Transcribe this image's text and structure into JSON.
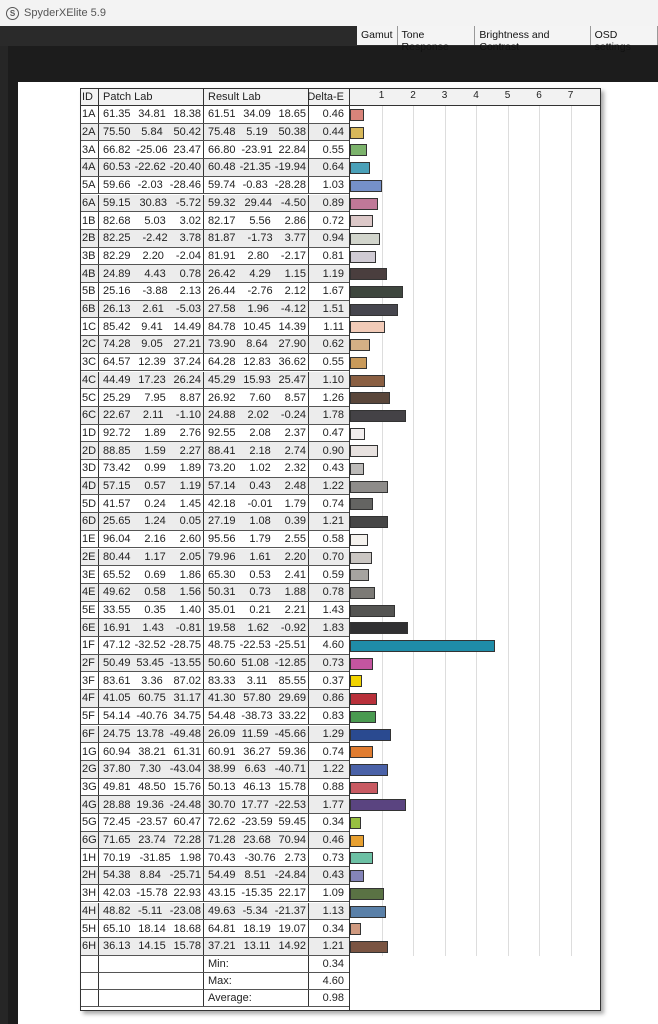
{
  "window": {
    "title": "SpyderXElite 5.9",
    "logo": "S"
  },
  "tabs": [
    "Gamut",
    "Tone Response",
    "Brightness and Contrast",
    "OSD settings"
  ],
  "table": {
    "headers": {
      "id": "ID",
      "patch": "Patch Lab",
      "result": "Result Lab",
      "delta": "Delta-E"
    },
    "axis_ticks": [
      "1",
      "2",
      "3",
      "4",
      "5",
      "6",
      "7"
    ],
    "rows": [
      [
        "1A",
        "61.35",
        "34.81",
        "18.38",
        "61.51",
        "34.09",
        "18.65",
        "0.46",
        "#d9847a"
      ],
      [
        "2A",
        "75.50",
        "5.84",
        "50.42",
        "75.48",
        "5.19",
        "50.38",
        "0.44",
        "#d8b85a"
      ],
      [
        "3A",
        "66.82",
        "-25.06",
        "23.47",
        "66.80",
        "-23.91",
        "22.84",
        "0.55",
        "#7cb36c"
      ],
      [
        "4A",
        "60.53",
        "-22.62",
        "-20.40",
        "60.48",
        "-21.35",
        "-19.94",
        "0.64",
        "#4aa0b8"
      ],
      [
        "5A",
        "59.66",
        "-2.03",
        "-28.46",
        "59.74",
        "-0.83",
        "-28.28",
        "1.03",
        "#7590c8"
      ],
      [
        "6A",
        "59.15",
        "30.83",
        "-5.72",
        "59.32",
        "29.44",
        "-4.50",
        "0.89",
        "#c07898"
      ],
      [
        "1B",
        "82.68",
        "5.03",
        "3.02",
        "82.17",
        "5.56",
        "2.86",
        "0.72",
        "#dcc8c8"
      ],
      [
        "2B",
        "82.25",
        "-2.42",
        "3.78",
        "81.87",
        "-1.73",
        "3.77",
        "0.94",
        "#d2d5cc"
      ],
      [
        "3B",
        "82.29",
        "2.20",
        "-2.04",
        "81.91",
        "2.80",
        "-2.17",
        "0.81",
        "#d0cbd4"
      ],
      [
        "4B",
        "24.89",
        "4.43",
        "0.78",
        "26.42",
        "4.29",
        "1.15",
        "1.19",
        "#4a3e3e"
      ],
      [
        "5B",
        "25.16",
        "-3.88",
        "2.13",
        "26.44",
        "-2.76",
        "2.12",
        "1.67",
        "#3e463e"
      ],
      [
        "6B",
        "26.13",
        "2.61",
        "-5.03",
        "27.58",
        "1.96",
        "-4.12",
        "1.51",
        "#46464e"
      ],
      [
        "1C",
        "85.42",
        "9.41",
        "14.49",
        "84.78",
        "10.45",
        "14.39",
        "1.11",
        "#f2cbb8"
      ],
      [
        "2C",
        "74.28",
        "9.05",
        "27.21",
        "73.90",
        "8.64",
        "27.90",
        "0.62",
        "#d4b085"
      ],
      [
        "3C",
        "64.57",
        "12.39",
        "37.24",
        "64.28",
        "12.83",
        "36.62",
        "0.55",
        "#c99a5a"
      ],
      [
        "4C",
        "44.49",
        "17.23",
        "26.24",
        "45.29",
        "15.93",
        "25.47",
        "1.10",
        "#8a5f42"
      ],
      [
        "5C",
        "25.29",
        "7.95",
        "8.87",
        "26.92",
        "7.60",
        "8.57",
        "1.26",
        "#5a463a"
      ],
      [
        "6C",
        "22.67",
        "2.11",
        "-1.10",
        "24.88",
        "2.02",
        "-0.24",
        "1.78",
        "#444246"
      ],
      [
        "1D",
        "92.72",
        "1.89",
        "2.76",
        "92.55",
        "2.08",
        "2.37",
        "0.47",
        "#f2eeee"
      ],
      [
        "2D",
        "88.85",
        "1.59",
        "2.27",
        "88.41",
        "2.18",
        "2.74",
        "0.90",
        "#e8e2e0"
      ],
      [
        "3D",
        "73.42",
        "0.99",
        "1.89",
        "73.20",
        "1.02",
        "2.32",
        "0.43",
        "#bcbab8"
      ],
      [
        "4D",
        "57.15",
        "0.57",
        "1.19",
        "57.14",
        "0.43",
        "2.48",
        "1.22",
        "#8e8c8a"
      ],
      [
        "5D",
        "41.57",
        "0.24",
        "1.45",
        "42.18",
        "-0.01",
        "1.79",
        "0.74",
        "#646462"
      ],
      [
        "6D",
        "25.65",
        "1.24",
        "0.05",
        "27.19",
        "1.08",
        "0.39",
        "1.21",
        "#464646"
      ],
      [
        "1E",
        "96.04",
        "2.16",
        "2.60",
        "95.56",
        "1.79",
        "2.55",
        "0.58",
        "#f5f2ee"
      ],
      [
        "2E",
        "80.44",
        "1.17",
        "2.05",
        "79.96",
        "1.61",
        "2.20",
        "0.70",
        "#cac6c2"
      ],
      [
        "3E",
        "65.52",
        "0.69",
        "1.86",
        "65.30",
        "0.53",
        "2.41",
        "0.59",
        "#a6a4a0"
      ],
      [
        "4E",
        "49.62",
        "0.58",
        "1.56",
        "50.31",
        "0.73",
        "1.88",
        "0.78",
        "#7c7a76"
      ],
      [
        "5E",
        "33.55",
        "0.35",
        "1.40",
        "35.01",
        "0.21",
        "2.21",
        "1.43",
        "#545452"
      ],
      [
        "6E",
        "16.91",
        "1.43",
        "-0.81",
        "19.58",
        "1.62",
        "-0.92",
        "1.83",
        "#303032"
      ],
      [
        "1F",
        "47.12",
        "-32.52",
        "-28.75",
        "48.75",
        "-22.53",
        "-25.51",
        "4.60",
        "#1f8ca8"
      ],
      [
        "2F",
        "50.49",
        "53.45",
        "-13.55",
        "50.60",
        "51.08",
        "-12.85",
        "0.73",
        "#c455a0"
      ],
      [
        "3F",
        "83.61",
        "3.36",
        "87.02",
        "83.33",
        "3.11",
        "85.55",
        "0.37",
        "#f2d400"
      ],
      [
        "4F",
        "41.05",
        "60.75",
        "31.17",
        "41.30",
        "57.80",
        "29.69",
        "0.86",
        "#b8303a"
      ],
      [
        "5F",
        "54.14",
        "-40.76",
        "34.75",
        "54.48",
        "-38.73",
        "33.22",
        "0.83",
        "#4a9a50"
      ],
      [
        "6F",
        "24.75",
        "13.78",
        "-49.48",
        "26.09",
        "11.59",
        "-45.66",
        "1.29",
        "#2a4a90"
      ],
      [
        "1G",
        "60.94",
        "38.21",
        "61.31",
        "60.91",
        "36.27",
        "59.36",
        "0.74",
        "#e07c30"
      ],
      [
        "2G",
        "37.80",
        "7.30",
        "-43.04",
        "38.99",
        "6.63",
        "-40.71",
        "1.22",
        "#4a62a8"
      ],
      [
        "3G",
        "49.81",
        "48.50",
        "15.76",
        "50.13",
        "46.13",
        "15.78",
        "0.88",
        "#c85a62"
      ],
      [
        "4G",
        "28.88",
        "19.36",
        "-24.48",
        "30.70",
        "17.77",
        "-22.53",
        "1.77",
        "#5a4480"
      ],
      [
        "5G",
        "72.45",
        "-23.57",
        "60.47",
        "72.62",
        "-23.59",
        "59.45",
        "0.34",
        "#98c040"
      ],
      [
        "6G",
        "71.65",
        "23.74",
        "72.28",
        "71.28",
        "23.68",
        "70.94",
        "0.46",
        "#e8a030"
      ],
      [
        "1H",
        "70.19",
        "-31.85",
        "1.98",
        "70.43",
        "-30.76",
        "2.73",
        "0.73",
        "#6cc0a4"
      ],
      [
        "2H",
        "54.38",
        "8.84",
        "-25.71",
        "54.49",
        "8.51",
        "-24.84",
        "0.43",
        "#8484b8"
      ],
      [
        "3H",
        "42.03",
        "-15.78",
        "22.93",
        "43.15",
        "-15.35",
        "22.17",
        "1.09",
        "#5a7244"
      ],
      [
        "4H",
        "48.82",
        "-5.11",
        "-23.08",
        "49.63",
        "-5.34",
        "-21.37",
        "1.13",
        "#5a80a8"
      ],
      [
        "5H",
        "65.10",
        "18.14",
        "18.68",
        "64.81",
        "18.19",
        "19.07",
        "0.34",
        "#d09a80"
      ],
      [
        "6H",
        "36.13",
        "14.15",
        "15.78",
        "37.21",
        "13.11",
        "14.92",
        "1.21",
        "#7a5442"
      ]
    ],
    "summary": [
      {
        "label": "Min:",
        "value": "0.34"
      },
      {
        "label": "Max:",
        "value": "4.60"
      },
      {
        "label": "Average:",
        "value": "0.98"
      }
    ]
  }
}
